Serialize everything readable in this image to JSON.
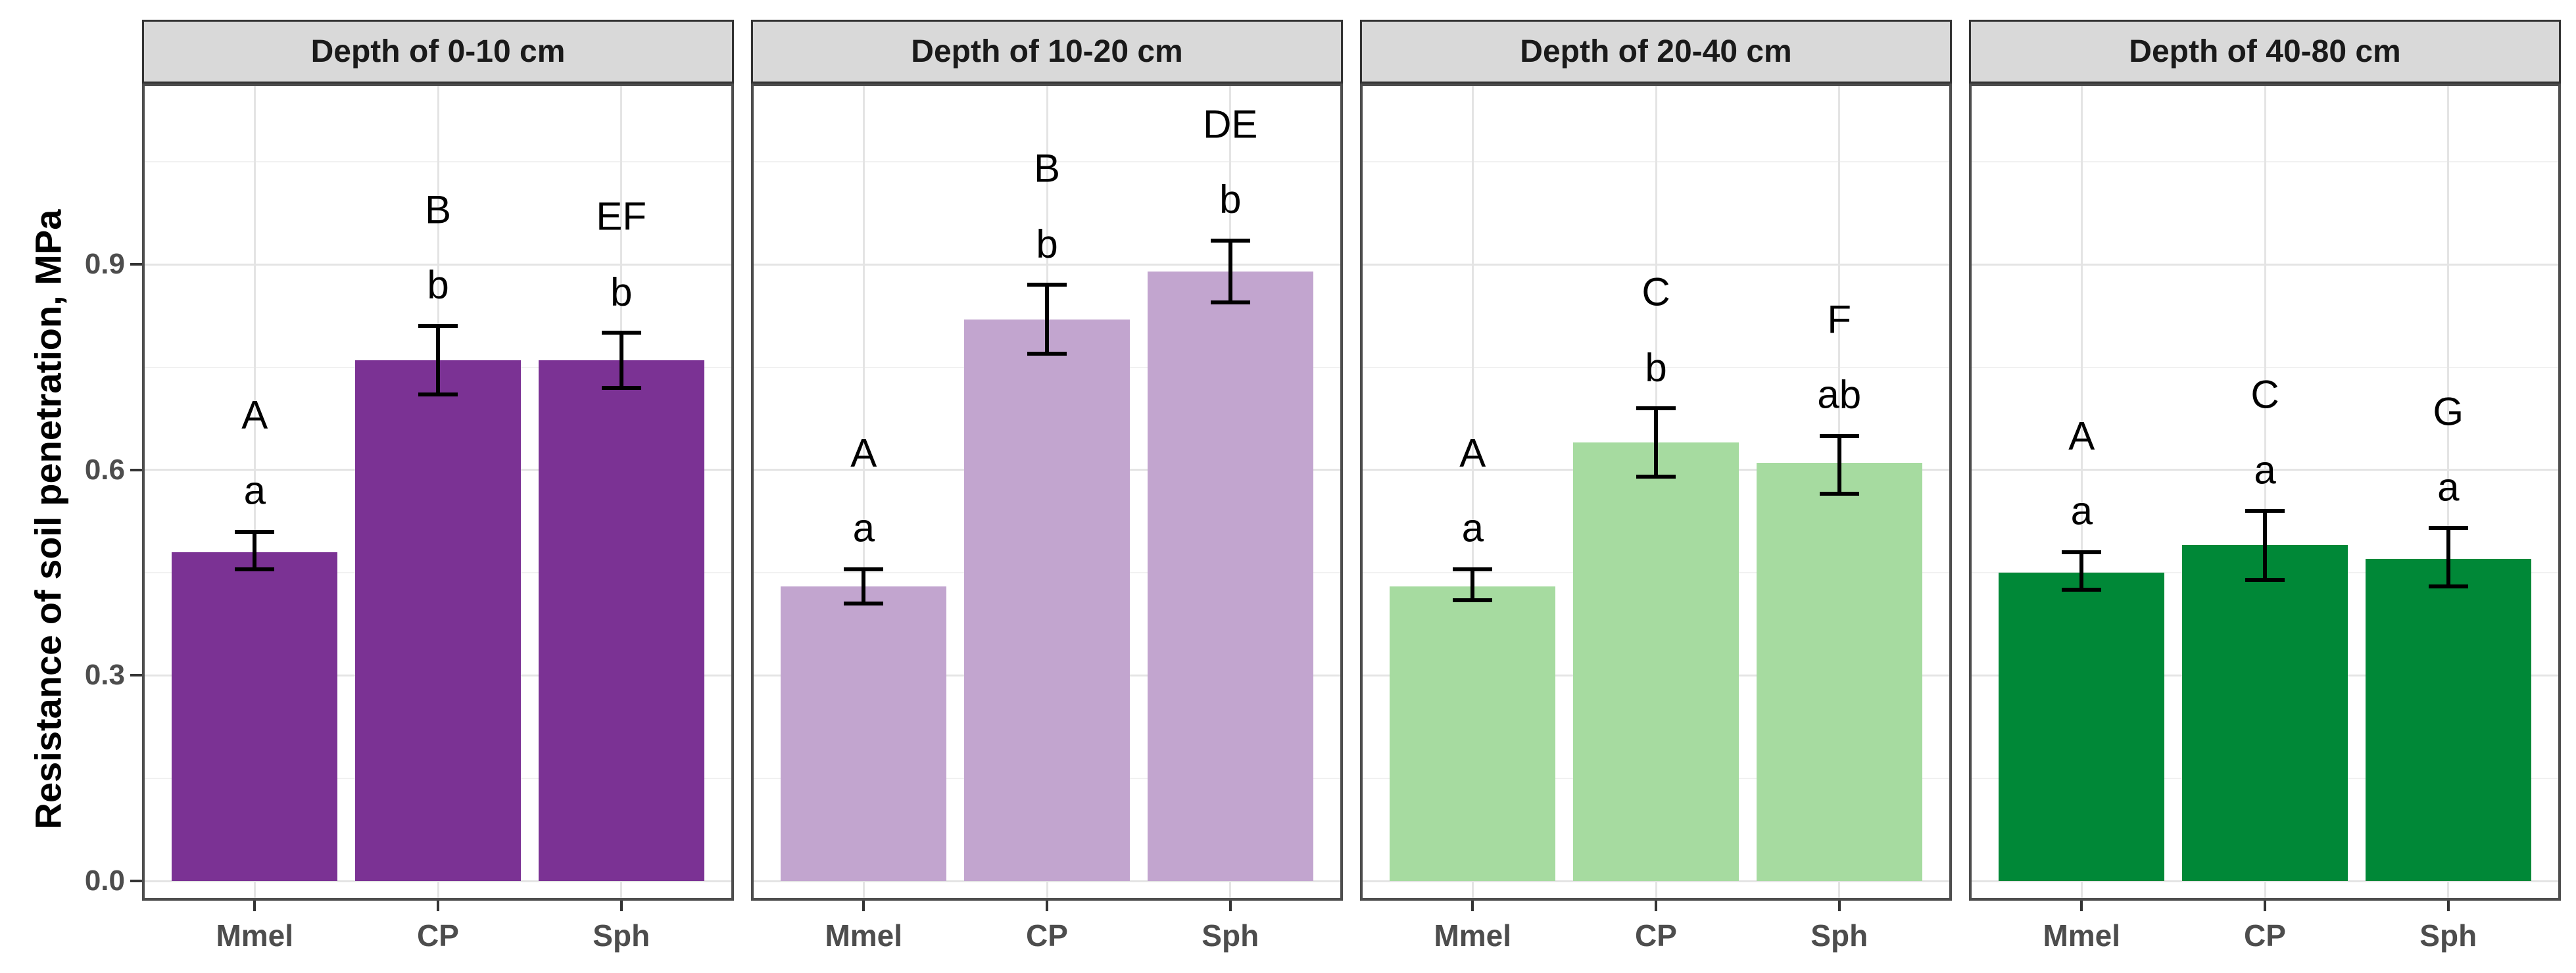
{
  "figure": {
    "y_axis_title": "Resistance of soil penetration, MPa"
  },
  "chart_data": {
    "type": "bar",
    "title": "",
    "xlabel": "",
    "ylabel": "Resistance of soil penetration, MPa",
    "categories": [
      "Mmel",
      "CP",
      "Sph"
    ],
    "y_ticks": [
      "0.0",
      "0.3",
      "0.6",
      "0.9"
    ],
    "y_tick_values": [
      0.0,
      0.3,
      0.6,
      0.9
    ],
    "y_minor_gridline_values": [
      0.15,
      0.45,
      0.75,
      1.05
    ],
    "ylim": [
      0,
      1.16
    ],
    "grid": "on",
    "legend_position": "none",
    "error_bar_color": "#000000",
    "strip_fill_color": "#d9d9d9",
    "facets": [
      {
        "label": "Depth of 0-10 cm",
        "bar_color": "#7b3294",
        "bars": [
          {
            "category": "Mmel",
            "value": 0.48,
            "error_low": 0.455,
            "error_high": 0.51,
            "letter_upper": "A",
            "letter_lower": "a"
          },
          {
            "category": "CP",
            "value": 0.76,
            "error_low": 0.71,
            "error_high": 0.81,
            "letter_upper": "B",
            "letter_lower": "b"
          },
          {
            "category": "Sph",
            "value": 0.76,
            "error_low": 0.72,
            "error_high": 0.8,
            "letter_upper": "EF",
            "letter_lower": "b"
          }
        ]
      },
      {
        "label": "Depth of 10-20 cm",
        "bar_color": "#c2a5cf",
        "bars": [
          {
            "category": "Mmel",
            "value": 0.43,
            "error_low": 0.405,
            "error_high": 0.455,
            "letter_upper": "A",
            "letter_lower": "a"
          },
          {
            "category": "CP",
            "value": 0.82,
            "error_low": 0.77,
            "error_high": 0.87,
            "letter_upper": "B",
            "letter_lower": "b"
          },
          {
            "category": "Sph",
            "value": 0.89,
            "error_low": 0.845,
            "error_high": 0.935,
            "letter_upper": "DE",
            "letter_lower": "b"
          }
        ]
      },
      {
        "label": "Depth of 20-40 cm",
        "bar_color": "#a6dba0",
        "bars": [
          {
            "category": "Mmel",
            "value": 0.43,
            "error_low": 0.41,
            "error_high": 0.455,
            "letter_upper": "A",
            "letter_lower": "a"
          },
          {
            "category": "CP",
            "value": 0.64,
            "error_low": 0.59,
            "error_high": 0.69,
            "letter_upper": "C",
            "letter_lower": "b"
          },
          {
            "category": "Sph",
            "value": 0.61,
            "error_low": 0.565,
            "error_high": 0.65,
            "letter_upper": "F",
            "letter_lower": "ab"
          }
        ]
      },
      {
        "label": "Depth of 40-80 cm",
        "bar_color": "#008837",
        "bars": [
          {
            "category": "Mmel",
            "value": 0.45,
            "error_low": 0.425,
            "error_high": 0.48,
            "letter_upper": "A",
            "letter_lower": "a"
          },
          {
            "category": "CP",
            "value": 0.49,
            "error_low": 0.44,
            "error_high": 0.54,
            "letter_upper": "C",
            "letter_lower": "a"
          },
          {
            "category": "Sph",
            "value": 0.47,
            "error_low": 0.43,
            "error_high": 0.515,
            "letter_upper": "G",
            "letter_lower": "a"
          }
        ]
      }
    ]
  }
}
